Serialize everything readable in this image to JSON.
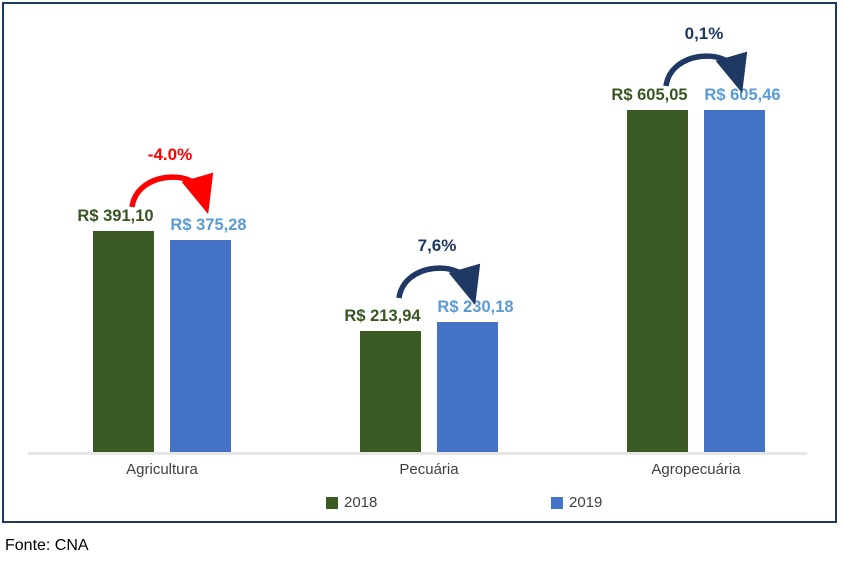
{
  "chart_data": {
    "type": "bar",
    "title": "",
    "xlabel": "",
    "ylabel": "",
    "categories": [
      "Agricultura",
      "Pecuária",
      "Agropecuária"
    ],
    "series": [
      {
        "name": "2018",
        "values": [
          391.1,
          213.94,
          605.05
        ],
        "data_labels": [
          "R$ 391,10",
          "R$ 213,94",
          "R$ 605,05"
        ],
        "bar_color": "#3b5a24",
        "label_color": "#375623"
      },
      {
        "name": "2019",
        "values": [
          375.28,
          230.18,
          605.46
        ],
        "data_labels": [
          "R$ 375,28",
          "R$ 230,18",
          "R$ 605,46"
        ],
        "bar_color": "#4472c4",
        "label_color": "#5b9bd5"
      }
    ],
    "change_annotations": [
      {
        "category": "Agricultura",
        "label": "-4.0%",
        "color": "#ff0000"
      },
      {
        "category": "Pecuária",
        "label": "7,6%",
        "color": "#1f3864"
      },
      {
        "category": "Agropecuária",
        "label": "0,1%",
        "color": "#1f3864"
      }
    ],
    "legend": {
      "position": "bottom",
      "entries": [
        "2018",
        "2019"
      ]
    },
    "grid": false,
    "ylim": [
      0,
      800
    ]
  },
  "frame": {
    "border_color": "#1f3864",
    "axis_color": "#e7e7e7"
  },
  "footer": {
    "source": "Fonte: CNA"
  }
}
